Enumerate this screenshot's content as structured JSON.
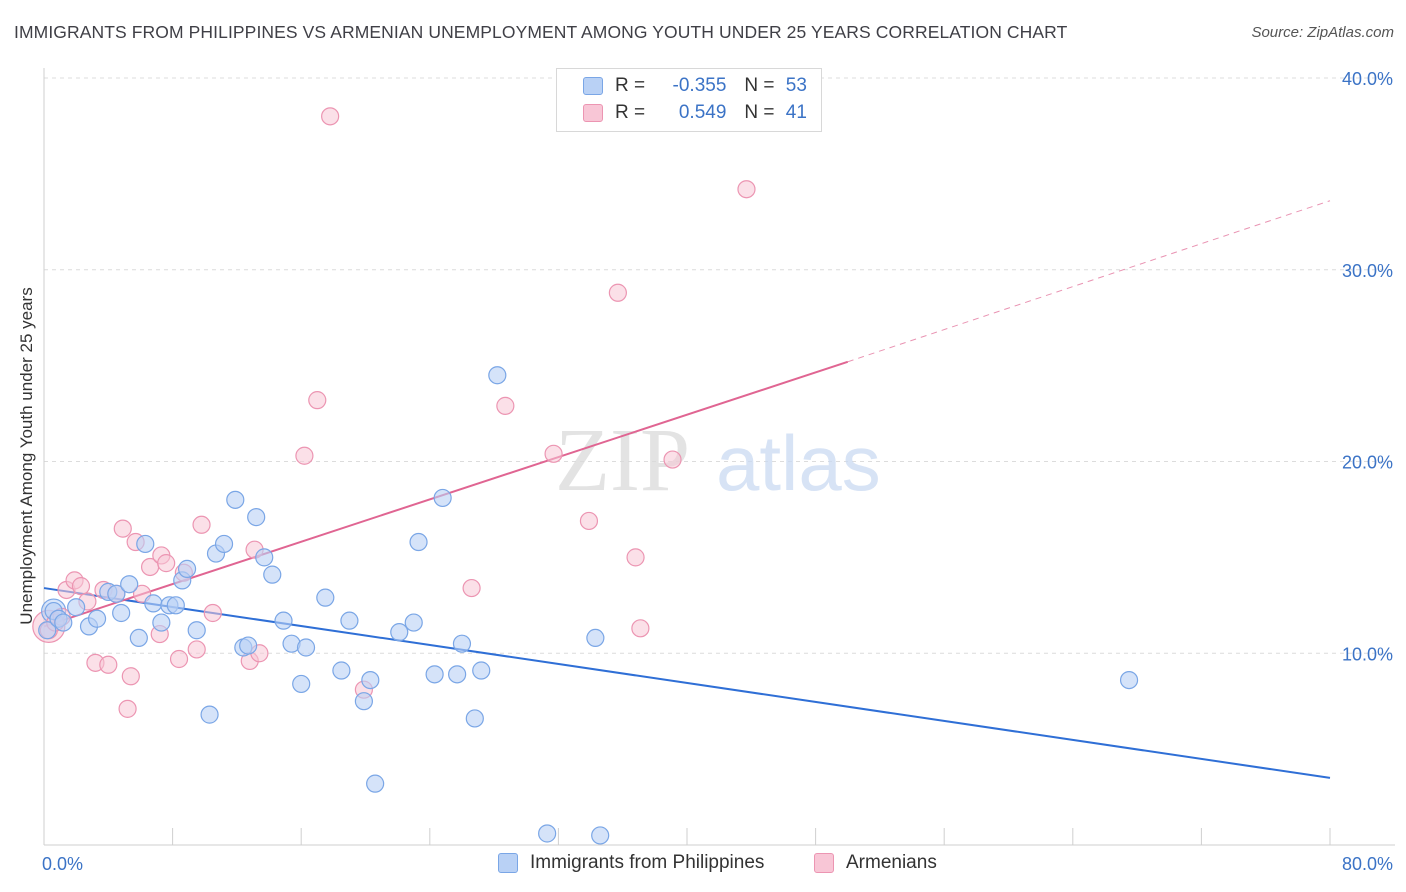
{
  "header": {
    "title": "IMMIGRANTS FROM PHILIPPINES VS ARMENIAN UNEMPLOYMENT AMONG YOUTH UNDER 25 YEARS CORRELATION CHART",
    "source": "Source: ZipAtlas.com"
  },
  "watermark": {
    "part1": "ZIP",
    "part2": "atlas"
  },
  "legend": {
    "rows": [
      {
        "r_label": "R =",
        "r_value": "-0.355",
        "n_label": "N =",
        "n_value": "53"
      },
      {
        "r_label": "R =",
        "r_value": "0.549",
        "n_label": "N =",
        "n_value": "41"
      }
    ]
  },
  "bottom_legend": {
    "series1": "Immigrants from Philippines",
    "series2": "Armenians"
  },
  "colors": {
    "blue_fill": "#b9d1f5",
    "blue_stroke": "#7aa6e6",
    "blue_line": "#2f6fd6",
    "pink_fill": "#f8c6d6",
    "pink_stroke": "#ec95b2",
    "pink_line": "#e06592",
    "tick_text": "#3b73c6"
  },
  "chart_data": {
    "type": "scatter",
    "title": "IMMIGRANTS FROM PHILIPPINES VS ARMENIAN UNEMPLOYMENT AMONG YOUTH UNDER 25 YEARS CORRELATION CHART",
    "xlabel": "",
    "ylabel": "Unemployment Among Youth under 25 years",
    "xlim": [
      0,
      80
    ],
    "ylim": [
      0,
      40
    ],
    "x_tick_labels": [
      "0.0%",
      "80.0%"
    ],
    "y_ticks": [
      10,
      20,
      30,
      40
    ],
    "y_tick_labels": [
      "10.0%",
      "20.0%",
      "30.0%",
      "40.0%"
    ],
    "grid": true,
    "legend_position": "top-center",
    "series": [
      {
        "name": "Immigrants from Philippines",
        "color": "#b9d1f5",
        "trend": {
          "x": [
            0,
            80
          ],
          "y": [
            13.4,
            3.5
          ]
        },
        "points": [
          [
            0.2,
            11.2
          ],
          [
            0.6,
            12.2
          ],
          [
            0.9,
            11.8
          ],
          [
            1.2,
            11.6
          ],
          [
            2.0,
            12.4
          ],
          [
            2.8,
            11.4
          ],
          [
            3.3,
            11.8
          ],
          [
            4.0,
            13.2
          ],
          [
            4.5,
            13.1
          ],
          [
            4.8,
            12.1
          ],
          [
            5.3,
            13.6
          ],
          [
            5.9,
            10.8
          ],
          [
            6.3,
            15.7
          ],
          [
            6.8,
            12.6
          ],
          [
            7.3,
            11.6
          ],
          [
            7.8,
            12.5
          ],
          [
            8.2,
            12.5
          ],
          [
            8.6,
            13.8
          ],
          [
            8.9,
            14.4
          ],
          [
            9.5,
            11.2
          ],
          [
            10.3,
            6.8
          ],
          [
            10.7,
            15.2
          ],
          [
            11.2,
            15.7
          ],
          [
            11.9,
            18.0
          ],
          [
            12.4,
            10.3
          ],
          [
            12.7,
            10.4
          ],
          [
            13.2,
            17.1
          ],
          [
            13.7,
            15.0
          ],
          [
            14.2,
            14.1
          ],
          [
            14.9,
            11.7
          ],
          [
            15.4,
            10.5
          ],
          [
            16.0,
            8.4
          ],
          [
            16.3,
            10.3
          ],
          [
            17.5,
            12.9
          ],
          [
            18.5,
            9.1
          ],
          [
            19.0,
            11.7
          ],
          [
            19.9,
            7.5
          ],
          [
            20.3,
            8.6
          ],
          [
            20.6,
            3.2
          ],
          [
            22.1,
            11.1
          ],
          [
            23.0,
            11.6
          ],
          [
            23.3,
            15.8
          ],
          [
            24.3,
            8.9
          ],
          [
            24.8,
            18.1
          ],
          [
            25.7,
            8.9
          ],
          [
            26.0,
            10.5
          ],
          [
            26.8,
            6.6
          ],
          [
            27.2,
            9.1
          ],
          [
            28.2,
            24.5
          ],
          [
            31.3,
            0.6
          ],
          [
            34.3,
            10.8
          ],
          [
            34.6,
            0.5
          ],
          [
            67.5,
            8.6
          ]
        ]
      },
      {
        "name": "Armenians",
        "color": "#f8c6d6",
        "trend": {
          "x": [
            0,
            50
          ],
          "y": [
            11.4,
            25.2
          ]
        },
        "trend_dashed": {
          "x": [
            50,
            80
          ],
          "y": [
            25.2,
            33.6
          ]
        },
        "points": [
          [
            0.3,
            11.2
          ],
          [
            0.7,
            11.6
          ],
          [
            1.1,
            11.9
          ],
          [
            1.4,
            13.3
          ],
          [
            1.9,
            13.8
          ],
          [
            2.3,
            13.5
          ],
          [
            2.7,
            12.7
          ],
          [
            3.2,
            9.5
          ],
          [
            3.7,
            13.3
          ],
          [
            4.0,
            9.4
          ],
          [
            4.5,
            13.1
          ],
          [
            4.9,
            16.5
          ],
          [
            5.2,
            7.1
          ],
          [
            5.4,
            8.8
          ],
          [
            5.7,
            15.8
          ],
          [
            6.1,
            13.1
          ],
          [
            6.6,
            14.5
          ],
          [
            7.2,
            11.0
          ],
          [
            7.3,
            15.1
          ],
          [
            7.6,
            14.7
          ],
          [
            8.4,
            9.7
          ],
          [
            8.7,
            14.2
          ],
          [
            9.5,
            10.2
          ],
          [
            9.8,
            16.7
          ],
          [
            10.5,
            12.1
          ],
          [
            12.8,
            9.6
          ],
          [
            13.1,
            15.4
          ],
          [
            13.4,
            10.0
          ],
          [
            16.2,
            20.3
          ],
          [
            17.0,
            23.2
          ],
          [
            17.8,
            38.0
          ],
          [
            19.9,
            8.1
          ],
          [
            26.6,
            13.4
          ],
          [
            28.7,
            22.9
          ],
          [
            31.7,
            20.4
          ],
          [
            33.9,
            16.9
          ],
          [
            35.7,
            28.8
          ],
          [
            36.8,
            15.0
          ],
          [
            37.1,
            11.3
          ],
          [
            39.1,
            20.1
          ],
          [
            43.7,
            34.2
          ]
        ]
      }
    ]
  }
}
